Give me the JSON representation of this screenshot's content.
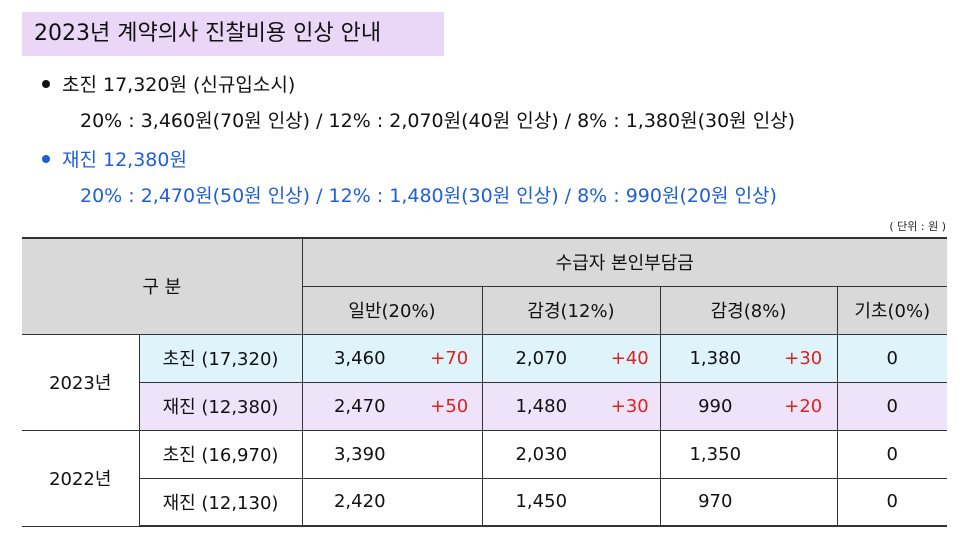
{
  "title": "2023년 계약의사 진찰비용 인상 안내",
  "initial": {
    "heading": "초진  17,320원 (신규입소시)",
    "detail": "20% : 3,460원(70원 인상)  /  12% : 2,070원(40원 인상)  /  8% : 1,380원(30원 인상)"
  },
  "revisit": {
    "heading": "재진  12,380원",
    "detail": "20% : 2,470원(50원 인상)  /  12% : 1,480원(30원 인상)  /  8% : 990원(20원 인상)"
  },
  "unit_note": "( 단위 : 원 )",
  "table": {
    "category_header": "구    분",
    "copay_header": "수급자 본인부담금",
    "columns": [
      "일반(20%)",
      "감경(12%)",
      "감경(8%)",
      "기초(0%)"
    ],
    "groups": [
      {
        "year": "2023년",
        "rows": [
          {
            "label": "초진 (17,320)",
            "general": "3,460",
            "general_inc": "+70",
            "reduced12": "2,070",
            "reduced12_inc": "+40",
            "reduced8": "1,380",
            "reduced8_inc": "+30",
            "basic": "0"
          },
          {
            "label": "재진 (12,380)",
            "general": "2,470",
            "general_inc": "+50",
            "reduced12": "1,480",
            "reduced12_inc": "+30",
            "reduced8": "990",
            "reduced8_inc": "+20",
            "basic": "0"
          }
        ]
      },
      {
        "year": "2022년",
        "rows": [
          {
            "label": "초진 (16,970)",
            "general": "3,390",
            "general_inc": "",
            "reduced12": "2,030",
            "reduced12_inc": "",
            "reduced8": "1,350",
            "reduced8_inc": "",
            "basic": "0"
          },
          {
            "label": "재진 (12,130)",
            "general": "2,420",
            "general_inc": "",
            "reduced12": "1,450",
            "reduced12_inc": "",
            "reduced8": "970",
            "reduced8_inc": "",
            "basic": "0"
          }
        ]
      }
    ]
  },
  "colors": {
    "title_bg": "#ead7f7",
    "blue_text": "#1f5fd6",
    "row_blue_bg": "#dff3fb",
    "row_purple_bg": "#efe3fa",
    "increase_red": "#e02020",
    "header_gray": "#d9d9d9"
  }
}
